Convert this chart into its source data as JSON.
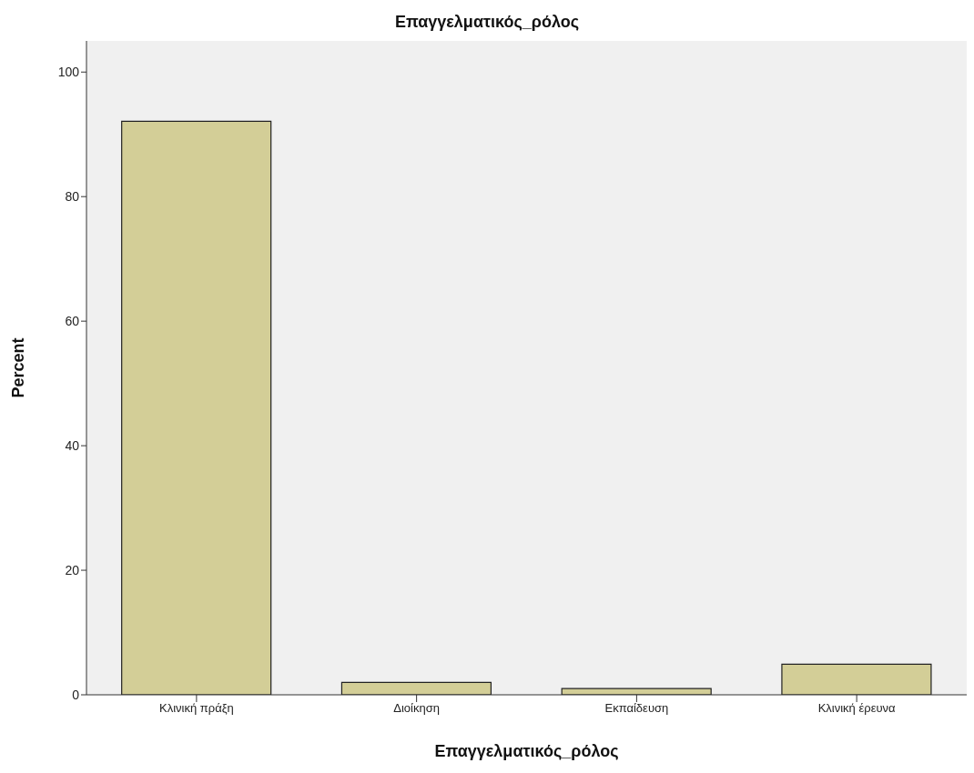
{
  "chart_data": {
    "type": "bar",
    "title": "Επαγγελματικός_ρόλος",
    "xlabel": "Επαγγελματικός_ρόλος",
    "ylabel": "Percent",
    "categories": [
      "Κλινική πράξη",
      "Διοίκηση",
      "Εκπαίδευση",
      "Κλινική έρευνα"
    ],
    "values": [
      92.1,
      2.0,
      1.0,
      4.9
    ],
    "color": "#d3ce97",
    "ylim": [
      0,
      105
    ],
    "yticks": [
      0,
      20,
      40,
      60,
      80,
      100
    ],
    "grid": false
  }
}
